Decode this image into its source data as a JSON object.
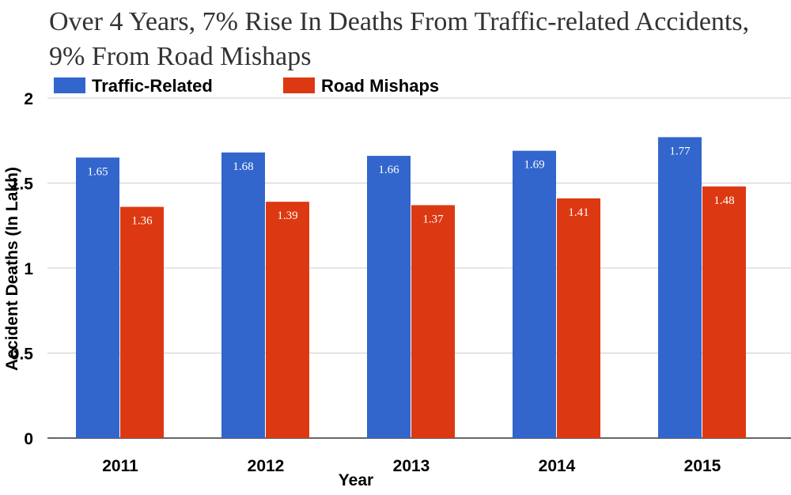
{
  "chart_data": {
    "type": "bar",
    "title": "Over 4 Years, 7% Rise In Deaths From Traffic-related Accidents, 9% From Road Mishaps",
    "xlabel": "Year",
    "ylabel": "Accident Deaths (In Lakh)",
    "categories": [
      "2011",
      "2012",
      "2013",
      "2014",
      "2015"
    ],
    "series": [
      {
        "name": "Traffic-Related",
        "color": "#3366cc",
        "values": [
          1.65,
          1.68,
          1.66,
          1.69,
          1.77
        ]
      },
      {
        "name": "Road Mishaps",
        "color": "#dc3912",
        "values": [
          1.36,
          1.39,
          1.37,
          1.41,
          1.48
        ]
      }
    ],
    "ylim": [
      0,
      2
    ],
    "yticks": [
      0,
      0.5,
      1,
      1.5,
      2
    ],
    "ytick_labels": [
      "0",
      "0.5",
      "1",
      "1.5",
      "2"
    ],
    "grid": true,
    "legend_position": "top-left",
    "data_labels": true
  }
}
